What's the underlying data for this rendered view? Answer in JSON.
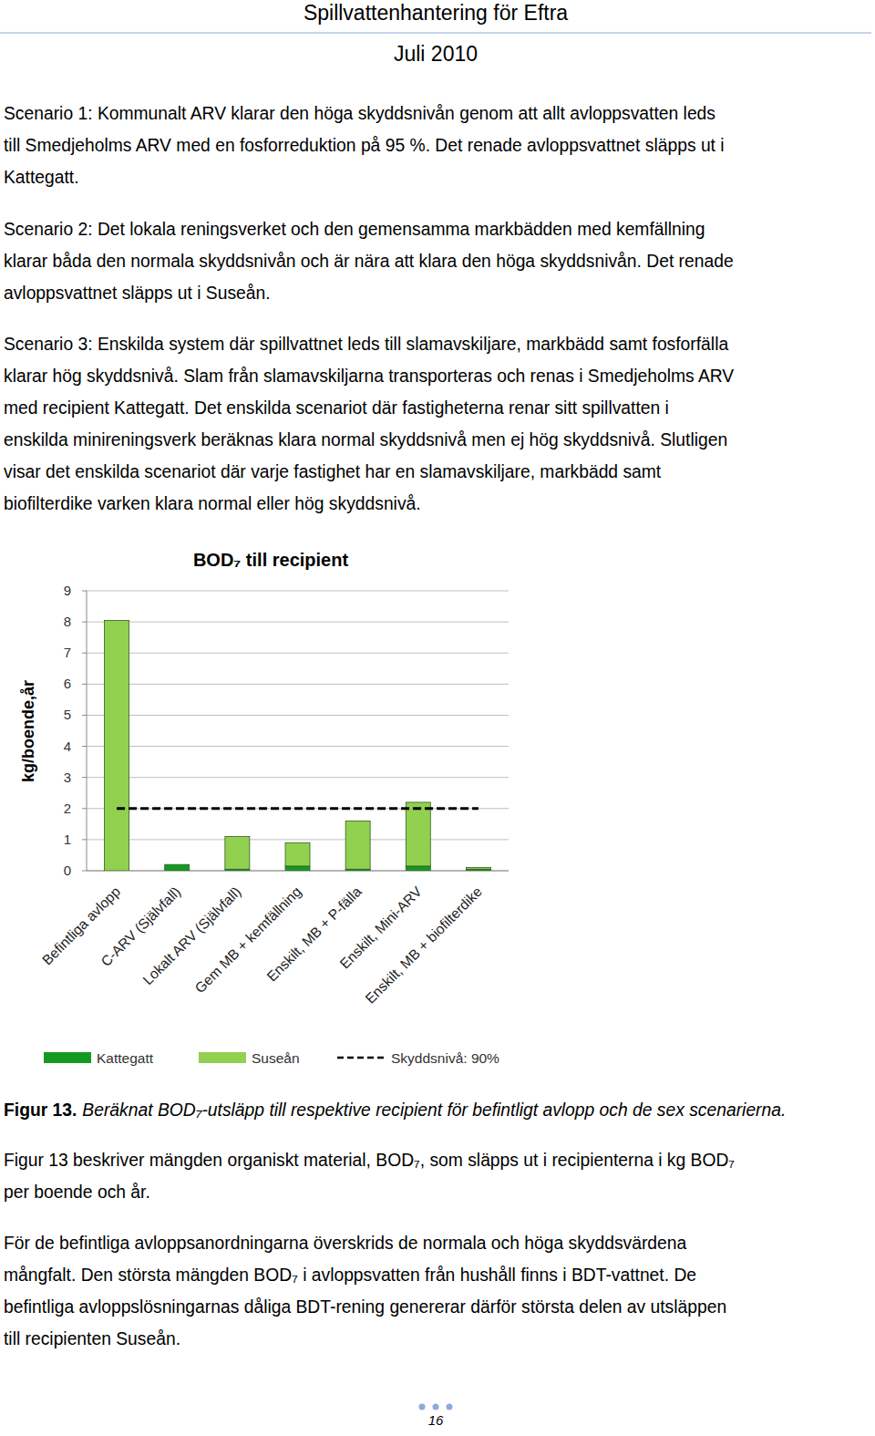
{
  "header": {
    "title": "Spillvattenhantering för Eftra",
    "date": "Juli 2010"
  },
  "paragraphs_top": [
    {
      "lines": [
        "Scenario 1: Kommunalt ARV klarar den höga skyddsnivån genom att allt avloppsvatten leds",
        "till Smedjeholms ARV med en fosforreduktion på 95 %. Det renade avloppsvattnet släpps ut i",
        "Kattegatt."
      ]
    },
    {
      "lines": [
        "Scenario 2: Det lokala reningsverket och den gemensamma markbädden med kemfällning",
        "klarar båda den normala skyddsnivån och är nära att klara den höga skyddsnivån. Det renade",
        "avloppsvattnet släpps ut i Suseån."
      ]
    },
    {
      "lines": [
        "Scenario 3: Enskilda system där spillvattnet leds till slamavskiljare, markbädd samt fosforfälla",
        "klarar hög skyddsnivå. Slam från slamavskiljarna transporteras och renas i Smedjeholms ARV",
        "med recipient Kattegatt. Det enskilda scenariot där fastigheterna renar sitt spillvatten i",
        "enskilda minireningsverk beräknas klara normal skyddsnivå men ej hög skyddsnivå. Slutligen",
        "visar det enskilda scenariot där varje fastighet har en slamavskiljare, markbädd samt",
        "biofilterdike varken klara normal eller hög skyddsnivå."
      ]
    }
  ],
  "chart_data": {
    "type": "bar",
    "stacked": true,
    "title": "BOD₇ till recipient",
    "y_label": "kg/boende,år",
    "categories": [
      "Befintliga avlopp",
      "C-ARV (Självfall)",
      "Lokalt ARV (Självfall)",
      "Gem MB + kemfällning",
      "Enskilt, MB + P-fälla",
      "Enskilt, Mini-ARV",
      "Enskilt, MB + biofilterdike"
    ],
    "series": [
      {
        "name": "Kattegatt",
        "color": "#149a22",
        "values": [
          0,
          0.2,
          0.05,
          0.15,
          0.05,
          0.15,
          0.05
        ]
      },
      {
        "name": "Suseån",
        "color": "#92d050",
        "values": [
          8.05,
          0,
          1.05,
          0.75,
          1.55,
          2.05,
          0.05
        ]
      },
      {
        "name": "Skyddsnivå: 90%",
        "type": "line",
        "line_style": "dashed",
        "color": "#000000",
        "values": [
          2,
          2,
          2,
          2,
          2,
          2,
          2
        ]
      }
    ],
    "ylim": [
      0,
      9
    ],
    "yticks": [
      0,
      1,
      2,
      3,
      4,
      5,
      6,
      7,
      8,
      9
    ],
    "grid": true,
    "legend": "bottom"
  },
  "caption": {
    "label": "Figur 13.",
    "text": "Beräknat BOD₇-utsläpp till respektive recipient för befintligt avlopp och de sex scenarierna."
  },
  "paragraphs_bottom": [
    {
      "lines": [
        "Figur 13 beskriver mängden organiskt material, BOD₇, som släpps ut i recipienterna i kg BOD₇",
        "per boende och år."
      ]
    },
    {
      "lines": [
        "För de befintliga avloppsanordningarna överskrids de normala och höga skyddsvärdena",
        "mångfalt. Den största mängden BOD₇ i avloppsvatten från hushåll finns i BDT-vattnet. De",
        "befintliga avloppslösningarnas dåliga BDT-rening genererar därför största delen av utsläppen",
        "till recipienten Suseån."
      ]
    }
  ],
  "page_number": "16"
}
